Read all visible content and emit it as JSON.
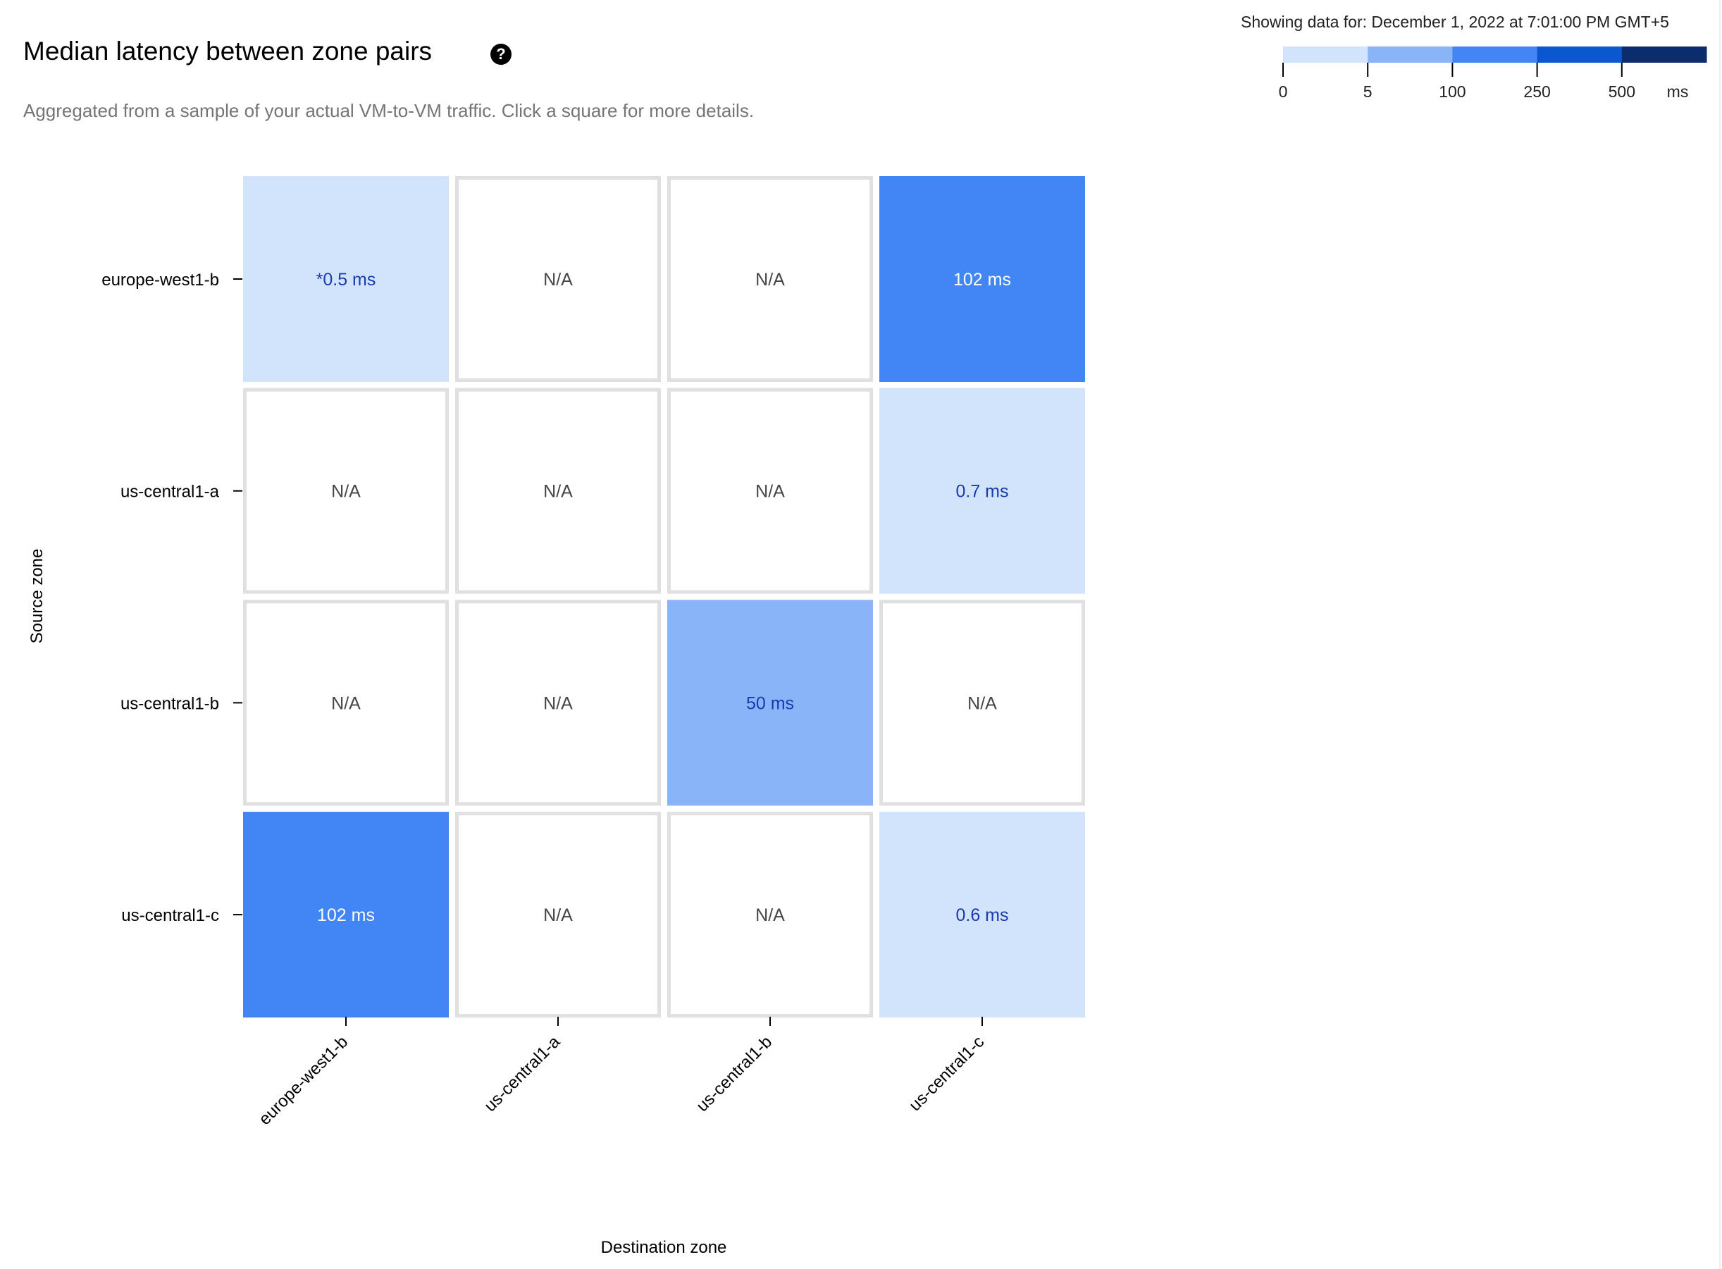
{
  "header": {
    "title": "Median latency between zone pairs",
    "help_icon": "help-circle-icon",
    "subtitle": "Aggregated from a sample of your actual VM-to-VM traffic. Click a square for more details.",
    "showing_data": "Showing data for: December 1, 2022 at 7:01:00 PM GMT+5"
  },
  "chart_data": {
    "type": "heatmap",
    "xlabel": "Destination zone",
    "ylabel": "Source zone",
    "x_categories": [
      "europe-west1-b",
      "us-central1-a",
      "us-central1-b",
      "us-central1-c"
    ],
    "y_categories": [
      "europe-west1-b",
      "us-central1-a",
      "us-central1-b",
      "us-central1-c"
    ],
    "values": [
      [
        0.5,
        null,
        null,
        102
      ],
      [
        null,
        null,
        null,
        0.7
      ],
      [
        null,
        null,
        50,
        null
      ],
      [
        102,
        null,
        null,
        0.6
      ]
    ],
    "labels": [
      [
        "*0.5 ms",
        "N/A",
        "N/A",
        "102 ms"
      ],
      [
        "N/A",
        "N/A",
        "N/A",
        "0.7 ms"
      ],
      [
        "N/A",
        "N/A",
        "50 ms",
        "N/A"
      ],
      [
        "102 ms",
        "N/A",
        "N/A",
        "0.6 ms"
      ]
    ],
    "legend": {
      "thresholds": [
        "0",
        "5",
        "100",
        "250",
        "500"
      ],
      "unit": "ms",
      "colors": [
        "#d2e3fc",
        "#8ab4f8",
        "#4285f4",
        "#0b57d0",
        "#0b2d6b"
      ]
    },
    "colors": {
      "na_fill": "#ffffff",
      "na_border": "#e0e0e0",
      "na_text": "#444746",
      "light_text": "#1a3bb0",
      "dark_text": "#ffffff"
    }
  }
}
